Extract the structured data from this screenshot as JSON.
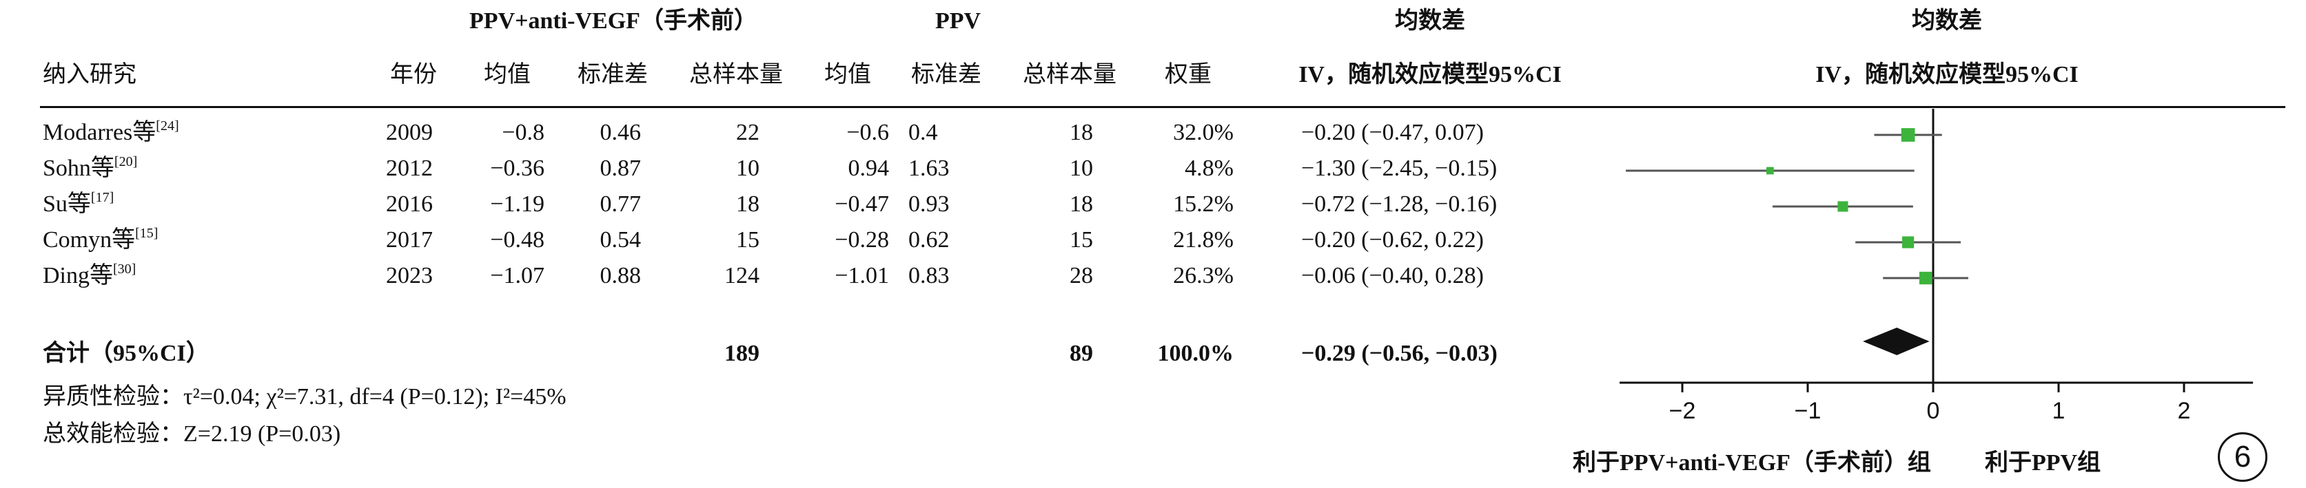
{
  "headers": {
    "group1": "PPV+anti-VEGF（手术前）",
    "group2": "PPV",
    "md_title": "均数差",
    "md_method": "IV，随机效应模型95%CI",
    "plot_title": "均数差",
    "plot_method": "IV，随机效应模型95%CI",
    "study": "纳入研究",
    "year": "年份",
    "mean1": "均值",
    "sd1": "标准差",
    "n1": "总样本量",
    "mean2": "均值",
    "sd2": "标准差",
    "n2": "总样本量",
    "weight": "权重"
  },
  "studies": [
    {
      "name": "Modarres等",
      "ref": "[24]",
      "year": "2009",
      "mean1": "−0.8",
      "sd1": "0.46",
      "n1": "22",
      "mean2": "−0.6",
      "sd2": "0.4",
      "n2": "18",
      "weight": "32.0%",
      "ci_text": "−0.20 (−0.47, 0.07)"
    },
    {
      "name": "Sohn等",
      "ref": "[20]",
      "year": "2012",
      "mean1": "−0.36",
      "sd1": "0.87",
      "n1": "10",
      "mean2": "0.94",
      "sd2": "1.63",
      "n2": "10",
      "weight": "4.8%",
      "ci_text": "−1.30 (−2.45, −0.15)"
    },
    {
      "name": "Su等",
      "ref": "[17]",
      "year": "2016",
      "mean1": "−1.19",
      "sd1": "0.77",
      "n1": "18",
      "mean2": "−0.47",
      "sd2": "0.93",
      "n2": "18",
      "weight": "15.2%",
      "ci_text": "−0.72 (−1.28, −0.16)"
    },
    {
      "name": "Comyn等",
      "ref": "[15]",
      "year": "2017",
      "mean1": "−0.48",
      "sd1": "0.54",
      "n1": "15",
      "mean2": "−0.28",
      "sd2": "0.62",
      "n2": "15",
      "weight": "21.8%",
      "ci_text": "−0.20 (−0.62, 0.22)"
    },
    {
      "name": "Ding等",
      "ref": "[30]",
      "year": "2023",
      "mean1": "−1.07",
      "sd1": "0.88",
      "n1": "124",
      "mean2": "−1.01",
      "sd2": "0.83",
      "n2": "28",
      "weight": "26.3%",
      "ci_text": "−0.06 (−0.40, 0.28)"
    }
  ],
  "total": {
    "label": "合计（95%CI）",
    "n1": "189",
    "n2": "89",
    "weight": "100.0%",
    "ci_text": "−0.29 (−0.56, −0.03)"
  },
  "heterogeneity": "异质性检验：τ²=0.04; χ²=7.31, df=4 (P=0.12); I²=45%",
  "overall_effect": "总效能检验：Z=2.19 (P=0.03)",
  "favours_left": "利于PPV+anti-VEGF（手术前）组",
  "favours_right": "利于PPV组",
  "panel_label": "6",
  "colors": {
    "marker": "#3cb43c",
    "line": "#555555",
    "diamond": "#111111"
  },
  "chart_data": {
    "type": "forest",
    "x_ticks": [
      -2,
      -1,
      0,
      1,
      2
    ],
    "x_tick_labels": [
      "−2",
      "−1",
      "0",
      "1",
      "2"
    ],
    "xlim": [
      -2.5,
      2.55
    ],
    "points": [
      {
        "study": "Modarres等",
        "md": -0.2,
        "lo": -0.47,
        "hi": 0.07,
        "weight": 32.0
      },
      {
        "study": "Sohn等",
        "md": -1.3,
        "lo": -2.45,
        "hi": -0.15,
        "weight": 4.8
      },
      {
        "study": "Su等",
        "md": -0.72,
        "lo": -1.28,
        "hi": -0.16,
        "weight": 15.2
      },
      {
        "study": "Comyn等",
        "md": -0.2,
        "lo": -0.62,
        "hi": 0.22,
        "weight": 21.8
      },
      {
        "study": "Ding等",
        "md": -0.06,
        "lo": -0.4,
        "hi": 0.28,
        "weight": 26.3
      }
    ],
    "pooled": {
      "md": -0.29,
      "lo": -0.56,
      "hi": -0.03
    }
  }
}
